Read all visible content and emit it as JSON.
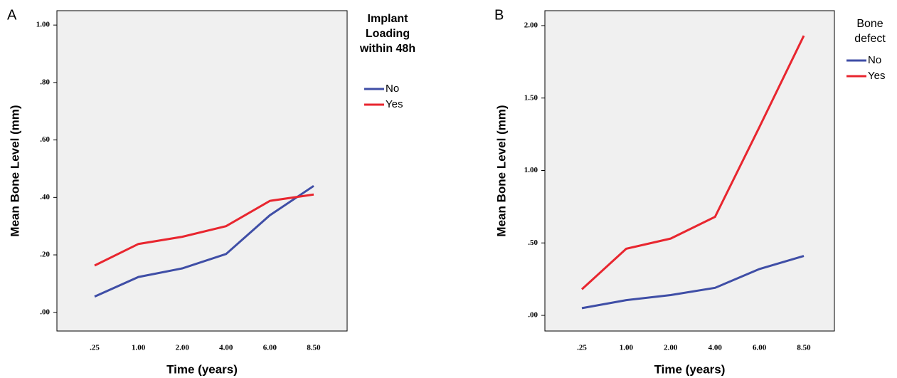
{
  "chart_data": [
    {
      "type": "line",
      "panel_label": "A",
      "xlabel": "Time (years)",
      "ylabel": "Mean Bone Level (mm)",
      "legend_title": "Implant Loading within 48h",
      "categories": [
        ".25",
        "1.00",
        "2.00",
        "4.00",
        "6.00",
        "8.50"
      ],
      "series": [
        {
          "name": "No",
          "color": "#3f4ea6",
          "values": [
            0.055,
            0.123,
            0.153,
            0.203,
            0.338,
            0.44
          ]
        },
        {
          "name": "Yes",
          "color": "#e8262f",
          "values": [
            0.163,
            0.238,
            0.263,
            0.3,
            0.388,
            0.41
          ]
        }
      ],
      "ylim": [
        -0.065,
        1.05
      ],
      "yticks": [
        {
          "value": 0,
          "label": ".00"
        },
        {
          "value": 0.2,
          "label": ".20"
        },
        {
          "value": 0.4,
          "label": ".40"
        },
        {
          "value": 0.6,
          "label": ".60"
        },
        {
          "value": 0.8,
          "label": ".80"
        },
        {
          "value": 1,
          "label": "1.00"
        }
      ]
    },
    {
      "type": "line",
      "panel_label": "B",
      "xlabel": "Time (years)",
      "ylabel": "Mean Bone Level (mm)",
      "legend_title": "Bone defect",
      "categories": [
        ".25",
        "1.00",
        "2.00",
        "4.00",
        "6.00",
        "8.50"
      ],
      "series": [
        {
          "name": "No",
          "color": "#3f4ea6",
          "values": [
            0.05,
            0.105,
            0.14,
            0.19,
            0.32,
            0.41
          ]
        },
        {
          "name": "Yes",
          "color": "#e8262f",
          "values": [
            0.18,
            0.46,
            0.53,
            0.68,
            1.3,
            1.93
          ]
        }
      ],
      "ylim": [
        -0.108,
        2.103
      ],
      "yticks": [
        {
          "value": 0,
          "label": ".00"
        },
        {
          "value": 0.5,
          "label": ".50"
        },
        {
          "value": 1,
          "label": "1.00"
        },
        {
          "value": 1.5,
          "label": "1.50"
        },
        {
          "value": 2,
          "label": "2.00"
        }
      ]
    }
  ]
}
